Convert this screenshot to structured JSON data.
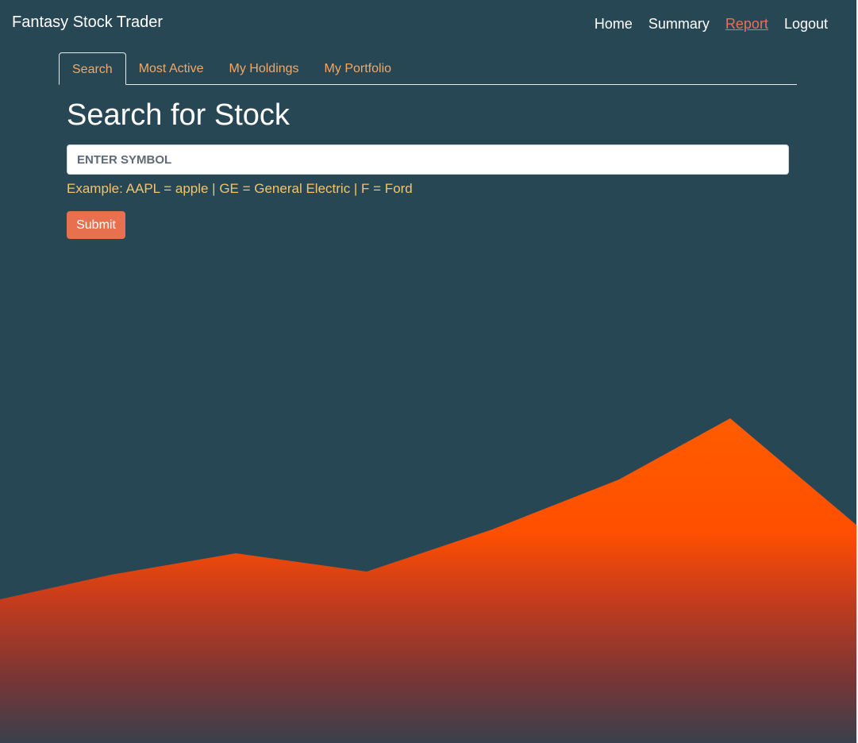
{
  "app": {
    "brand": "Fantasy Stock Trader"
  },
  "nav": {
    "items": [
      {
        "label": "Home",
        "active": false
      },
      {
        "label": "Summary",
        "active": false
      },
      {
        "label": "Report",
        "active": true
      },
      {
        "label": "Logout",
        "active": false
      }
    ]
  },
  "tabs": [
    {
      "label": "Search",
      "active": true
    },
    {
      "label": "Most Active",
      "active": false
    },
    {
      "label": "My Holdings",
      "active": false
    },
    {
      "label": "My Portfolio",
      "active": false
    }
  ],
  "main": {
    "title": "Search for Stock",
    "search_placeholder": "ENTER SYMBOL",
    "search_value": "",
    "example_text": "Example: AAPL = apple | GE = General Electric | F = Ford",
    "submit_label": "Submit"
  },
  "colors": {
    "background": "#284755",
    "accent": "#e8704f",
    "tab_text": "#f0a868",
    "example_text": "#f2c46a",
    "mountain_top": "#ff5a00",
    "mountain_bottom": "#39404c"
  }
}
